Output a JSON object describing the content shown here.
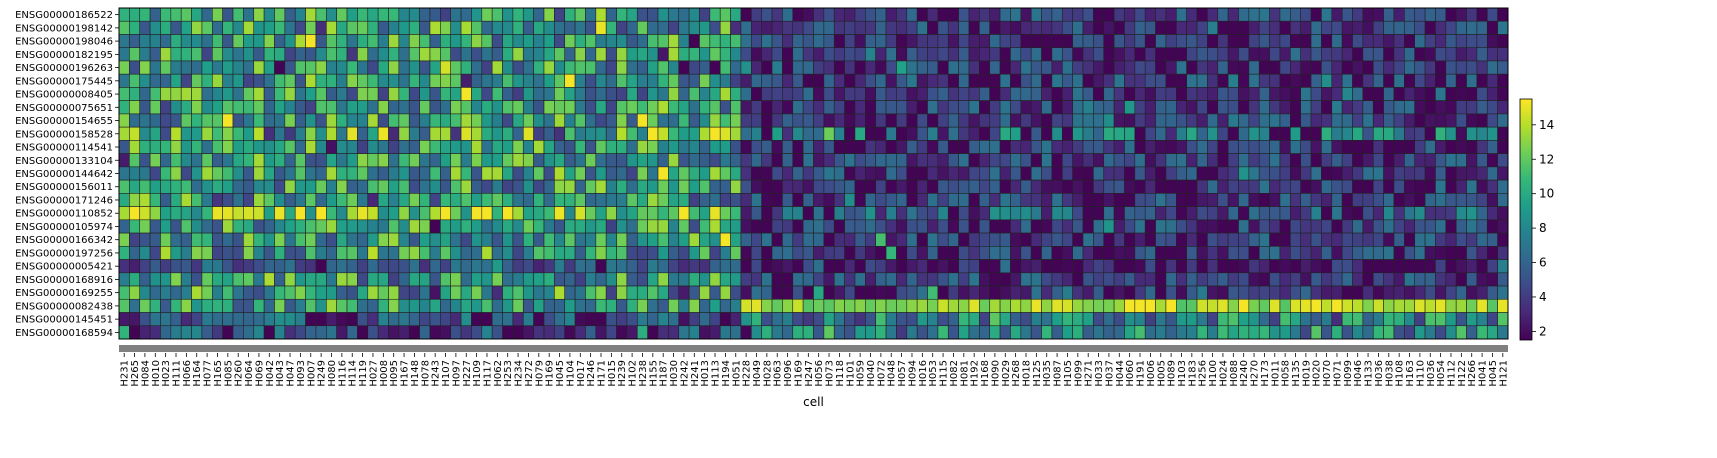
{
  "chart_data": {
    "type": "heatmap",
    "xlabel": "cell",
    "ylabel": "",
    "title": "",
    "colormap": "viridis",
    "value_range": [
      1.5,
      15.5
    ],
    "colorbar_ticks": [
      2,
      4,
      6,
      8,
      10,
      12,
      14
    ],
    "group_bar_color": "#808080",
    "genes": [
      "ENSG00000186522",
      "ENSG00000198142",
      "ENSG00000198046",
      "ENSG00000182195",
      "ENSG00000196263",
      "ENSG00000175445",
      "ENSG00000008405",
      "ENSG00000075651",
      "ENSG00000154655",
      "ENSG00000158528",
      "ENSG00000114541",
      "ENSG00000133104",
      "ENSG00000144642",
      "ENSG00000156011",
      "ENSG00000171246",
      "ENSG00000110852",
      "ENSG00000105974",
      "ENSG00000166342",
      "ENSG00000197256",
      "ENSG00000005421",
      "ENSG00000168916",
      "ENSG00000169255",
      "ENSG00000082438",
      "ENSG00000145451",
      "ENSG00000168594"
    ],
    "cells": [
      "H231",
      "H265",
      "H084",
      "H010",
      "H023",
      "H111",
      "H066",
      "H164",
      "H077",
      "H165",
      "H085",
      "H260",
      "H064",
      "H069",
      "H042",
      "H043",
      "H047",
      "H093",
      "H007",
      "H249",
      "H080",
      "H116",
      "H114",
      "H119",
      "H027",
      "H008",
      "H095",
      "H167",
      "H148",
      "H078",
      "H243",
      "H107",
      "H097",
      "H227",
      "H109",
      "H117",
      "H062",
      "H253",
      "H234",
      "H272",
      "H079",
      "H169",
      "H045",
      "H104",
      "H017",
      "H246",
      "H171",
      "H015",
      "H239",
      "H102",
      "H238",
      "H155",
      "H187",
      "H030",
      "H242",
      "H241",
      "H013",
      "H113",
      "H194",
      "H051",
      "H228",
      "H049",
      "H028",
      "H063",
      "H096",
      "H169",
      "H247",
      "H056",
      "H073",
      "H118",
      "H101",
      "H059",
      "H040",
      "H072",
      "H048",
      "H057",
      "H094",
      "H016",
      "H053",
      "H115",
      "H082",
      "H081",
      "H192",
      "H168",
      "H090",
      "H029",
      "H268",
      "H018",
      "H125",
      "H035",
      "H087",
      "H105",
      "H099",
      "H271",
      "H033",
      "H037",
      "H044",
      "H060",
      "H191",
      "H006",
      "H005",
      "H089",
      "H103",
      "H183",
      "H256",
      "H100",
      "H024",
      "H088",
      "H240",
      "H270",
      "H173",
      "H011",
      "H058",
      "H135",
      "H019",
      "H020",
      "H070",
      "H071",
      "H099",
      "H046",
      "H133",
      "H036",
      "H038",
      "H108",
      "H163",
      "H110",
      "H036",
      "H054",
      "H112",
      "H122",
      "H266",
      "H041",
      "H045",
      "H121"
    ]
  }
}
